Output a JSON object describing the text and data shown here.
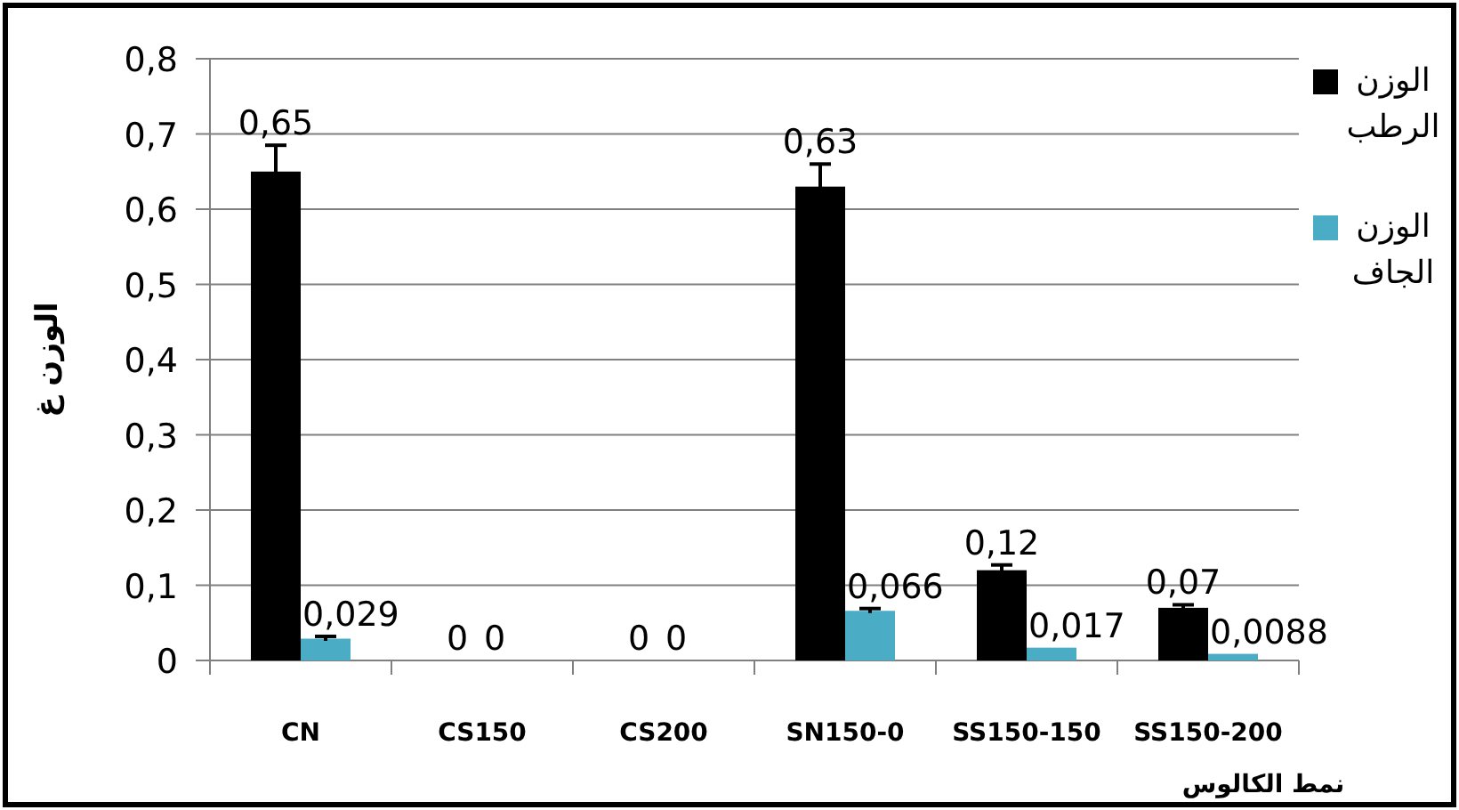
{
  "chart_data": {
    "type": "bar",
    "xlabel": "نمط الكالوس",
    "ylabel": "الوزن غ",
    "categories": [
      "CN",
      "CS150",
      "CS200",
      "SN150-0",
      "SS150-150",
      "SS150-200"
    ],
    "series": [
      {
        "name": "الوزن الرطب",
        "color": "#000000",
        "values": [
          0.65,
          0,
          0,
          0.63,
          0.12,
          0.07
        ],
        "errors": [
          0.035,
          null,
          null,
          0.03,
          0.007,
          0.004
        ],
        "value_labels": [
          "0,65",
          "0",
          "0",
          "0,63",
          "0,12",
          "0,07"
        ]
      },
      {
        "name": "الوزن الجاف",
        "color": "#4bacc6",
        "values": [
          0.029,
          0,
          0,
          0.066,
          0.017,
          0.0088
        ],
        "errors": [
          0.003,
          null,
          null,
          0.003,
          null,
          null
        ],
        "value_labels": [
          "0,029",
          "0",
          "0",
          "0,066",
          "0,017",
          "0,0088"
        ]
      }
    ],
    "ylim": [
      0,
      0.8
    ],
    "yticks": [
      0,
      {
        "value": 0.1,
        "label": "0,1"
      },
      {
        "value": 0.2,
        "label": "0,2"
      },
      {
        "value": 0.3,
        "label": "0,3"
      },
      {
        "value": 0.4,
        "label": "0,4"
      },
      {
        "value": 0.5,
        "label": "0,5"
      },
      {
        "value": 0.6,
        "label": "0,6"
      },
      {
        "value": 0.7,
        "label": "0,7"
      },
      {
        "value": 0.8,
        "label": "0,8"
      }
    ],
    "grid": "y",
    "legend": "right"
  }
}
